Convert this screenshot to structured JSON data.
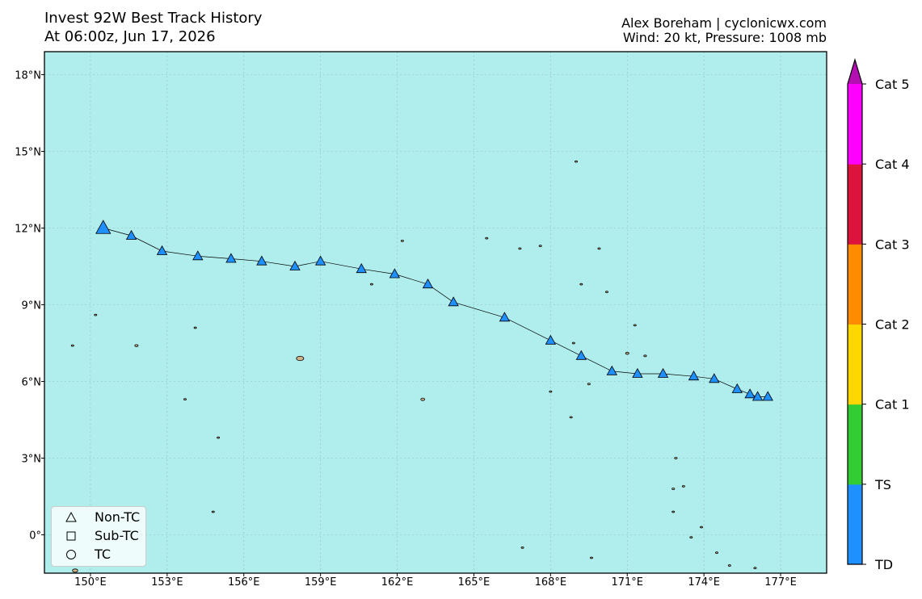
{
  "header": {
    "title_line1": "Invest 92W Best Track History",
    "title_line2": "At 06:00z, Jun 17, 2026",
    "credit_line1": "Alex Boreham | cyclonicwx.com",
    "credit_line2": "Wind: 20 kt, Pressure: 1008 mb"
  },
  "map": {
    "ocean_color": "#b0eded",
    "land_color": "#d2b48c",
    "track_color": "#1e90ff",
    "lon_range": [
      148.2,
      178.8
    ],
    "lat_range": [
      -1.5,
      18.9
    ],
    "lon_ticks": [
      {
        "value": 150,
        "label": "150°E"
      },
      {
        "value": 153,
        "label": "153°E"
      },
      {
        "value": 156,
        "label": "156°E"
      },
      {
        "value": 159,
        "label": "159°E"
      },
      {
        "value": 162,
        "label": "162°E"
      },
      {
        "value": 165,
        "label": "165°E"
      },
      {
        "value": 168,
        "label": "168°E"
      },
      {
        "value": 171,
        "label": "171°E"
      },
      {
        "value": 174,
        "label": "174°E"
      },
      {
        "value": 177,
        "label": "177°E"
      }
    ],
    "lat_ticks": [
      {
        "value": 0,
        "label": "0°"
      },
      {
        "value": 3,
        "label": "3°N"
      },
      {
        "value": 6,
        "label": "6°N"
      },
      {
        "value": 9,
        "label": "9°N"
      },
      {
        "value": 12,
        "label": "12°N"
      },
      {
        "value": 15,
        "label": "15°N"
      },
      {
        "value": 18,
        "label": "18°N"
      }
    ]
  },
  "track": [
    {
      "lon": 150.5,
      "lat": 12.0,
      "type": "Non-TC",
      "current": true
    },
    {
      "lon": 151.6,
      "lat": 11.7,
      "type": "Non-TC"
    },
    {
      "lon": 152.8,
      "lat": 11.1,
      "type": "Non-TC"
    },
    {
      "lon": 154.2,
      "lat": 10.9,
      "type": "Non-TC"
    },
    {
      "lon": 155.5,
      "lat": 10.8,
      "type": "Non-TC"
    },
    {
      "lon": 156.7,
      "lat": 10.7,
      "type": "Non-TC"
    },
    {
      "lon": 158.0,
      "lat": 10.5,
      "type": "Non-TC"
    },
    {
      "lon": 159.0,
      "lat": 10.7,
      "type": "Non-TC"
    },
    {
      "lon": 160.6,
      "lat": 10.4,
      "type": "Non-TC"
    },
    {
      "lon": 161.9,
      "lat": 10.2,
      "type": "Non-TC"
    },
    {
      "lon": 163.2,
      "lat": 9.8,
      "type": "Non-TC"
    },
    {
      "lon": 164.2,
      "lat": 9.1,
      "type": "Non-TC"
    },
    {
      "lon": 166.2,
      "lat": 8.5,
      "type": "Non-TC"
    },
    {
      "lon": 168.0,
      "lat": 7.6,
      "type": "Non-TC"
    },
    {
      "lon": 169.2,
      "lat": 7.0,
      "type": "Non-TC"
    },
    {
      "lon": 170.4,
      "lat": 6.4,
      "type": "Non-TC"
    },
    {
      "lon": 171.4,
      "lat": 6.3,
      "type": "Non-TC"
    },
    {
      "lon": 172.4,
      "lat": 6.3,
      "type": "Non-TC"
    },
    {
      "lon": 173.6,
      "lat": 6.2,
      "type": "Non-TC"
    },
    {
      "lon": 174.4,
      "lat": 6.1,
      "type": "Non-TC"
    },
    {
      "lon": 175.3,
      "lat": 5.7,
      "type": "Non-TC"
    },
    {
      "lon": 175.8,
      "lat": 5.5,
      "type": "Non-TC"
    },
    {
      "lon": 176.1,
      "lat": 5.4,
      "type": "Non-TC"
    },
    {
      "lon": 176.5,
      "lat": 5.4,
      "type": "Non-TC"
    }
  ],
  "islands": [
    {
      "lon": 158.2,
      "lat": 6.9,
      "r": 0.11
    },
    {
      "lon": 163.0,
      "lat": 5.3,
      "r": 0.06
    },
    {
      "lon": 151.8,
      "lat": 7.4,
      "r": 0.05
    },
    {
      "lon": 149.3,
      "lat": 7.4,
      "r": 0.03
    },
    {
      "lon": 150.2,
      "lat": 8.6,
      "r": 0.02
    },
    {
      "lon": 154.1,
      "lat": 8.1,
      "r": 0.03
    },
    {
      "lon": 155.0,
      "lat": 3.8,
      "r": 0.03
    },
    {
      "lon": 153.7,
      "lat": 5.3,
      "r": 0.02
    },
    {
      "lon": 154.8,
      "lat": 0.9,
      "r": 0.03
    },
    {
      "lon": 162.2,
      "lat": 11.5,
      "r": 0.03
    },
    {
      "lon": 165.5,
      "lat": 11.6,
      "r": 0.03
    },
    {
      "lon": 166.8,
      "lat": 11.2,
      "r": 0.03
    },
    {
      "lon": 167.6,
      "lat": 11.3,
      "r": 0.03
    },
    {
      "lon": 169.0,
      "lat": 14.6,
      "r": 0.03
    },
    {
      "lon": 169.9,
      "lat": 11.2,
      "r": 0.03
    },
    {
      "lon": 169.2,
      "lat": 9.8,
      "r": 0.03
    },
    {
      "lon": 170.2,
      "lat": 9.5,
      "r": 0.03
    },
    {
      "lon": 171.3,
      "lat": 8.2,
      "r": 0.03
    },
    {
      "lon": 171.0,
      "lat": 7.1,
      "r": 0.05
    },
    {
      "lon": 171.7,
      "lat": 7.0,
      "r": 0.04
    },
    {
      "lon": 169.5,
      "lat": 5.9,
      "r": 0.04
    },
    {
      "lon": 168.8,
      "lat": 4.6,
      "r": 0.03
    },
    {
      "lon": 168.0,
      "lat": 5.6,
      "r": 0.02
    },
    {
      "lon": 168.9,
      "lat": 7.5,
      "r": 0.03
    },
    {
      "lon": 172.9,
      "lat": 3.0,
      "r": 0.04
    },
    {
      "lon": 172.8,
      "lat": 1.8,
      "r": 0.04
    },
    {
      "lon": 173.2,
      "lat": 1.9,
      "r": 0.03
    },
    {
      "lon": 172.8,
      "lat": 0.9,
      "r": 0.03
    },
    {
      "lon": 173.5,
      "lat": -0.1,
      "r": 0.03
    },
    {
      "lon": 173.9,
      "lat": 0.3,
      "r": 0.03
    },
    {
      "lon": 174.5,
      "lat": -0.7,
      "r": 0.03
    },
    {
      "lon": 175.0,
      "lat": -1.2,
      "r": 0.03
    },
    {
      "lon": 176.0,
      "lat": -1.3,
      "r": 0.03
    },
    {
      "lon": 166.9,
      "lat": -0.5,
      "r": 0.03
    },
    {
      "lon": 169.6,
      "lat": -0.9,
      "r": 0.03
    },
    {
      "lon": 161.0,
      "lat": 9.8,
      "r": 0.02
    },
    {
      "lon": 149.4,
      "lat": -1.4,
      "r": 0.08
    }
  ],
  "colorbar": {
    "segments": [
      {
        "label": "TD",
        "color": "#1e90ff"
      },
      {
        "label": "TS",
        "color": "#32cd32"
      },
      {
        "label": "Cat 1",
        "color": "#ffd700"
      },
      {
        "label": "Cat 2",
        "color": "#ff8c00"
      },
      {
        "label": "Cat 3",
        "color": "#dc143c"
      },
      {
        "label": "Cat 4",
        "color": "#ff00ff"
      }
    ],
    "extend_color": "#b30fb3",
    "tick_labels": [
      "TD",
      "TS",
      "Cat 1",
      "Cat 2",
      "Cat 3",
      "Cat 4",
      "Cat 5"
    ]
  },
  "legend": {
    "items": [
      {
        "symbol": "triangle",
        "label": "Non-TC"
      },
      {
        "symbol": "square",
        "label": "Sub-TC"
      },
      {
        "symbol": "circle",
        "label": "TC"
      }
    ]
  }
}
